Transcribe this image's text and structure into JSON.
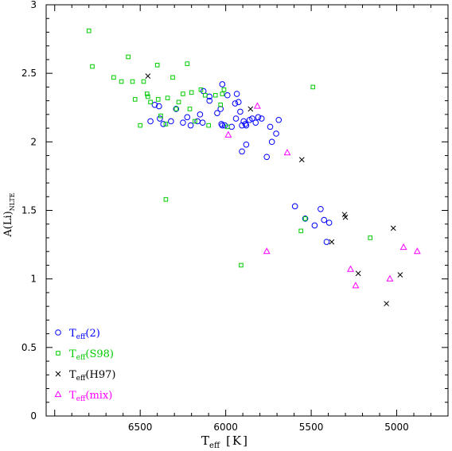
{
  "chart_data": {
    "type": "scatter",
    "xlabel": "T",
    "xlabel_sub": "eff",
    "xlabel_unit": "[K]",
    "ylabel": "A(Li)",
    "ylabel_sub": "NLTE",
    "xlim": [
      7050,
      4700
    ],
    "ylim": [
      0,
      3
    ],
    "x_ticks": [
      6500,
      6000,
      5500,
      5000
    ],
    "y_ticks": [
      0,
      0.5,
      1,
      1.5,
      2,
      2.5,
      3
    ],
    "y_tick_labels": [
      "0",
      "0.5",
      "1",
      "1.5",
      "2",
      "2.5",
      "3"
    ],
    "legend_position": "bottom-left",
    "series": [
      {
        "name": "T",
        "name_sub": "eff",
        "name_suffix": "(2)",
        "marker": "circle",
        "color": "#0000ff",
        "points": [
          [
            6440,
            2.15
          ],
          [
            6415,
            2.27
          ],
          [
            6390,
            2.26
          ],
          [
            6385,
            2.17
          ],
          [
            6365,
            2.13
          ],
          [
            6320,
            2.15
          ],
          [
            6290,
            2.24
          ],
          [
            6250,
            2.14
          ],
          [
            6225,
            2.18
          ],
          [
            6205,
            2.12
          ],
          [
            6165,
            2.15
          ],
          [
            6150,
            2.2
          ],
          [
            6135,
            2.14
          ],
          [
            6130,
            2.37
          ],
          [
            6095,
            2.33
          ],
          [
            6095,
            2.3
          ],
          [
            6050,
            2.21
          ],
          [
            6030,
            2.24
          ],
          [
            6025,
            2.13
          ],
          [
            6020,
            2.12
          ],
          [
            6020,
            2.42
          ],
          [
            6005,
            2.12
          ],
          [
            5990,
            2.34
          ],
          [
            5965,
            2.11
          ],
          [
            5945,
            2.28
          ],
          [
            5940,
            2.17
          ],
          [
            5935,
            2.35
          ],
          [
            5925,
            2.29
          ],
          [
            5915,
            2.22
          ],
          [
            5905,
            2.12
          ],
          [
            5895,
            2.15
          ],
          [
            5885,
            2.13
          ],
          [
            5880,
            2.12
          ],
          [
            5860,
            2.16
          ],
          [
            5845,
            2.17
          ],
          [
            5825,
            2.14
          ],
          [
            5810,
            2.18
          ],
          [
            5790,
            2.17
          ],
          [
            5760,
            1.89
          ],
          [
            5740,
            2.11
          ],
          [
            5730,
            2.0
          ],
          [
            5705,
            2.06
          ],
          [
            5690,
            2.16
          ],
          [
            5905,
            1.93
          ],
          [
            5880,
            1.98
          ],
          [
            5595,
            1.53
          ],
          [
            5535,
            1.44
          ],
          [
            5480,
            1.39
          ],
          [
            5445,
            1.51
          ],
          [
            5425,
            1.43
          ],
          [
            5410,
            1.27
          ],
          [
            5395,
            1.41
          ]
        ]
      },
      {
        "name": "T",
        "name_sub": "eff",
        "name_suffix": "(S98)",
        "marker": "square",
        "color": "#00cc00",
        "points": [
          [
            6800,
            2.81
          ],
          [
            6780,
            2.55
          ],
          [
            6655,
            2.47
          ],
          [
            6610,
            2.44
          ],
          [
            6570,
            2.62
          ],
          [
            6545,
            2.44
          ],
          [
            6530,
            2.31
          ],
          [
            6500,
            2.12
          ],
          [
            6480,
            2.44
          ],
          [
            6460,
            2.35
          ],
          [
            6455,
            2.33
          ],
          [
            6440,
            2.29
          ],
          [
            6400,
            2.56
          ],
          [
            6395,
            2.31
          ],
          [
            6380,
            2.19
          ],
          [
            6350,
            2.13
          ],
          [
            6340,
            2.32
          ],
          [
            6310,
            2.47
          ],
          [
            6290,
            2.24
          ],
          [
            6275,
            2.29
          ],
          [
            6250,
            2.35
          ],
          [
            6225,
            2.57
          ],
          [
            6210,
            2.24
          ],
          [
            6200,
            2.36
          ],
          [
            6180,
            2.15
          ],
          [
            6145,
            2.38
          ],
          [
            6120,
            2.34
          ],
          [
            6100,
            2.12
          ],
          [
            6060,
            2.34
          ],
          [
            6030,
            2.27
          ],
          [
            6020,
            2.35
          ],
          [
            6010,
            2.38
          ],
          [
            5990,
            2.11
          ],
          [
            5490,
            2.4
          ],
          [
            5560,
            1.35
          ],
          [
            5535,
            1.44
          ],
          [
            5155,
            1.3
          ],
          [
            6350,
            1.58
          ],
          [
            5910,
            1.1
          ]
        ]
      },
      {
        "name": "T",
        "name_sub": "eff",
        "name_suffix": "(H97)",
        "marker": "cross",
        "color": "#000000",
        "points": [
          [
            6455,
            2.48
          ],
          [
            5855,
            2.24
          ],
          [
            5555,
            1.87
          ],
          [
            5305,
            1.47
          ],
          [
            5300,
            1.45
          ],
          [
            5380,
            1.27
          ],
          [
            5225,
            1.04
          ],
          [
            5020,
            1.37
          ],
          [
            4980,
            1.03
          ],
          [
            5060,
            0.82
          ]
        ]
      },
      {
        "name": "T",
        "name_sub": "eff",
        "name_suffix": "(mix)",
        "marker": "triangle",
        "color": "#ff00ff",
        "points": [
          [
            5815,
            2.26
          ],
          [
            5640,
            1.92
          ],
          [
            5985,
            2.05
          ],
          [
            5760,
            1.2
          ],
          [
            5270,
            1.07
          ],
          [
            5240,
            0.95
          ],
          [
            5040,
            1.0
          ],
          [
            4960,
            1.23
          ],
          [
            4880,
            1.2
          ]
        ]
      }
    ]
  }
}
